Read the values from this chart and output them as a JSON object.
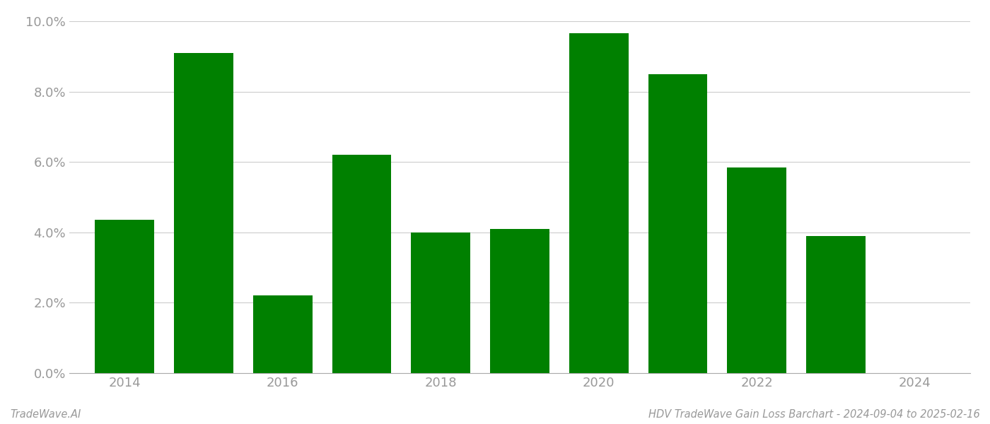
{
  "years": [
    2014,
    2015,
    2016,
    2017,
    2018,
    2019,
    2020,
    2021,
    2022,
    2023
  ],
  "values": [
    0.0435,
    0.091,
    0.022,
    0.062,
    0.04,
    0.041,
    0.0965,
    0.085,
    0.0585,
    0.039
  ],
  "bar_color": "#008000",
  "background_color": "#ffffff",
  "ylim": [
    0,
    0.1
  ],
  "ytick_values": [
    0.0,
    0.02,
    0.04,
    0.06,
    0.08,
    0.1
  ],
  "xtick_values": [
    2014,
    2016,
    2018,
    2020,
    2022,
    2024
  ],
  "xlim": [
    2013.3,
    2024.7
  ],
  "grid_color": "#cccccc",
  "tick_label_color": "#999999",
  "footer_left": "TradeWave.AI",
  "footer_right": "HDV TradeWave Gain Loss Barchart - 2024-09-04 to 2025-02-16",
  "bar_width": 0.75,
  "spine_color": "#aaaaaa",
  "tick_fontsize": 13,
  "footer_fontsize": 10.5
}
